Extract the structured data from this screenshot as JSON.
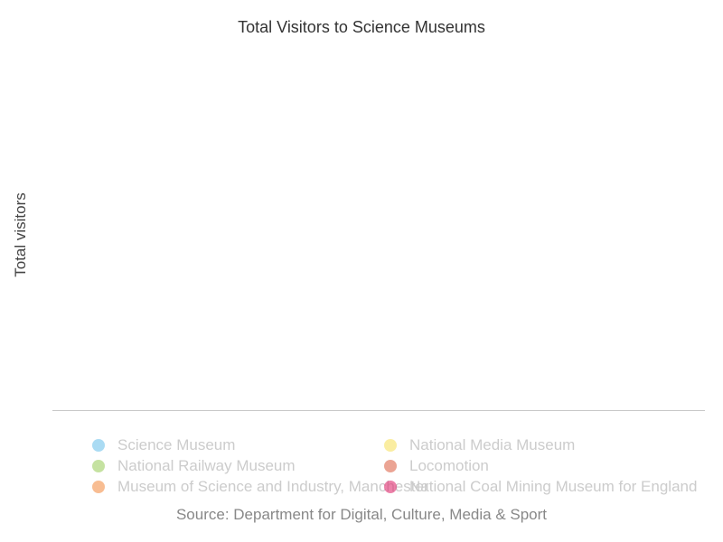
{
  "chart_data": {
    "type": "scatter",
    "title": "Total Visitors to Science Museums",
    "xlabel": "",
    "ylabel": "Total visitors",
    "grid": false,
    "legend_position": "bottom",
    "series": [
      {
        "name": "Science Museum",
        "color": "#7cc7ec",
        "values": []
      },
      {
        "name": "National Railway Museum",
        "color": "#a6d36f",
        "values": []
      },
      {
        "name": "Museum of Science and Industry, Manchester",
        "color": "#f59a57",
        "values": []
      },
      {
        "name": "National Media Museum",
        "color": "#f8e36f",
        "values": []
      },
      {
        "name": "Locomotion",
        "color": "#e0735a",
        "values": []
      },
      {
        "name": "National Coal Mining Museum for England",
        "color": "#e23d7b",
        "values": []
      }
    ],
    "source": "Source: Department for Digital, Culture, Media & Sport"
  }
}
